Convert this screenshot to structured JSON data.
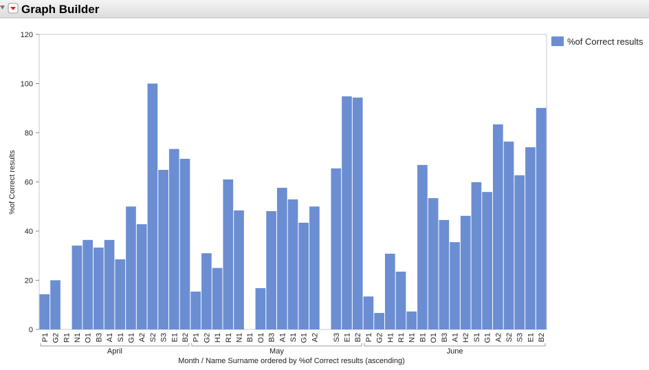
{
  "header": {
    "title": "Graph Builder"
  },
  "chart_data": {
    "type": "bar",
    "y_label": "%of Correct results",
    "x_label": "Month / Name Surname ordered by %of Correct results (ascending)",
    "ylim": [
      0,
      120
    ],
    "yticks": [
      0,
      20,
      40,
      60,
      80,
      100,
      120
    ],
    "grid": false,
    "legend": "right",
    "groups": [
      {
        "name": "April",
        "categories": [
          "P1",
          "G2",
          "R1",
          "N1",
          "O1",
          "B3",
          "A1",
          "S1",
          "G1",
          "A2",
          "S2",
          "S3",
          "E1",
          "B2"
        ]
      },
      {
        "name": "May",
        "categories": [
          "P1",
          "G2",
          "H1",
          "R1",
          "N1",
          "B1",
          "O1",
          "B3",
          "A1",
          "S1",
          "G1",
          "A2",
          null,
          "S3",
          "E1",
          "B2"
        ]
      },
      {
        "name": "June",
        "categories": [
          "P1",
          "G2",
          "H1",
          "R1",
          "N1",
          "B1",
          "O1",
          "B3",
          "A1",
          "H2",
          "S1",
          "G1",
          "A2",
          "S2",
          "S3",
          "E1",
          "B2"
        ]
      }
    ],
    "series": [
      {
        "name": "%of Correct results",
        "color": "#6b8ed3",
        "values": [
          14.3,
          20,
          0,
          34.1,
          36.4,
          33.3,
          36.4,
          28.5,
          50,
          42.8,
          100,
          64.9,
          73.4,
          69.4,
          15.4,
          31,
          25,
          61,
          48.4,
          0,
          16.8,
          48.1,
          57.6,
          52.9,
          43.4,
          50,
          0,
          65.5,
          94.8,
          94.3,
          13.4,
          6.7,
          30.8,
          23.5,
          7.3,
          66.9,
          53.4,
          44.5,
          35.5,
          46.2,
          59.9,
          55.9,
          83.4,
          76.4,
          62.7,
          74.1,
          90.1
        ]
      }
    ]
  }
}
